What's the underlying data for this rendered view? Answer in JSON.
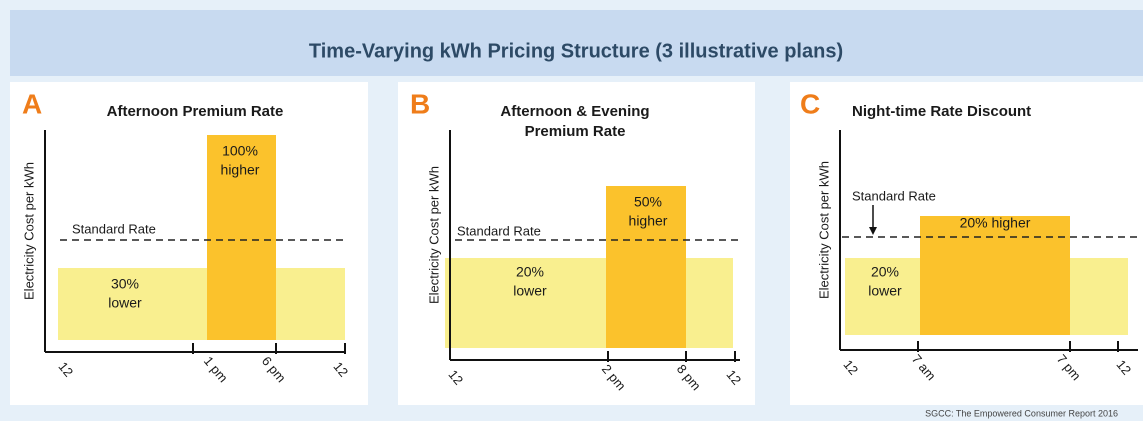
{
  "header": {
    "title": "Time-Varying kWh Pricing Structure (3 illustrative plans)"
  },
  "panels": [
    {
      "letter": "A",
      "title": [
        "Afternoon Premium Rate"
      ],
      "axis_label": "Electricity Cost per kWh",
      "standard_rate": "Standard Rate",
      "low_label": [
        "30%",
        "lower"
      ],
      "high_label": [
        "100%",
        "higher"
      ],
      "ticks": [
        "12",
        "1 pm",
        "6 pm",
        "12"
      ]
    },
    {
      "letter": "B",
      "title": [
        "Afternoon & Evening",
        "Premium Rate"
      ],
      "axis_label": "Electricity Cost per kWh",
      "standard_rate": "Standard Rate",
      "low_label": [
        "20%",
        "lower"
      ],
      "high_label": [
        "50%",
        "higher"
      ],
      "ticks": [
        "12",
        "2 pm",
        "8 pm",
        "12"
      ]
    },
    {
      "letter": "C",
      "title": [
        "Night-time Rate Discount"
      ],
      "axis_label": "Electricity Cost per kWh",
      "standard_rate": "Standard Rate",
      "low_label": [
        "20%",
        "lower"
      ],
      "high_label": [
        "20% higher"
      ],
      "ticks": [
        "12",
        "7 am",
        "7 pm",
        "12"
      ]
    }
  ],
  "footer": {
    "source": "SGCC: The Empowered Consumer Report 2016"
  }
}
